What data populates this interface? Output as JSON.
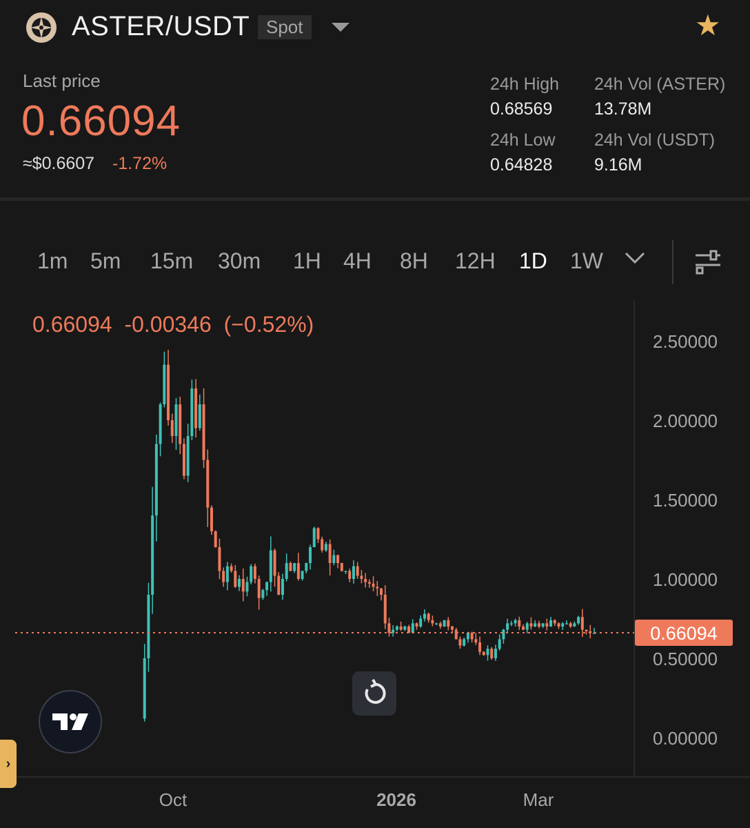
{
  "header": {
    "pair": "ASTER/USDT",
    "market_type": "Spot",
    "logo_icon": "aster-logo-icon",
    "favorite_icon": "star-icon",
    "favorite_color": "#e8b55e"
  },
  "ticker": {
    "last_price_label": "Last price",
    "last_price": "0.66094",
    "usd_price": "≈$0.6607",
    "change_pct": "-1.72%",
    "high_label": "24h High",
    "high_value": "0.68569",
    "low_label": "24h Low",
    "low_value": "0.64828",
    "vol_base_label": "24h Vol (ASTER)",
    "vol_base_value": "13.78M",
    "vol_quote_label": "24h Vol (USDT)",
    "vol_quote_value": "9.16M"
  },
  "timeframes": {
    "items": [
      "1m",
      "5m",
      "15m",
      "30m",
      "1H",
      "4H",
      "8H",
      "12H",
      "1D",
      "1W"
    ],
    "active": "1D",
    "more_icon": "chevron-down-icon",
    "settings_icon": "chart-settings-icon"
  },
  "chart_data": {
    "type": "candlestick",
    "title": "",
    "ohlc_readout": {
      "price": "0.66094",
      "change": "-0.00346",
      "change_pct": "(−0.52%)"
    },
    "y_ticks": [
      "2.50000",
      "2.00000",
      "1.50000",
      "1.00000",
      "0.50000",
      "0.00000"
    ],
    "x_ticks": [
      "Oct",
      "2026",
      "Mar"
    ],
    "ylim": [
      0,
      2.5
    ],
    "last_price_label": "0.66094",
    "last_price": 0.66094,
    "up_color": "#3fc1b6",
    "down_color": "#ee7a5b",
    "price_path": [
      0.12,
      0.5,
      0.9,
      1.4,
      1.85,
      2.1,
      2.35,
      2.0,
      1.9,
      2.1,
      1.85,
      1.65,
      1.9,
      2.2,
      1.95,
      2.1,
      1.75,
      1.45,
      1.3,
      1.2,
      1.05,
      0.98,
      1.08,
      1.05,
      0.95,
      1.0,
      0.92,
      0.98,
      1.08,
      1.0,
      0.88,
      0.93,
      0.98,
      1.18,
      1.02,
      0.9,
      1.0,
      1.1,
      1.05,
      1.1,
      1.0,
      1.05,
      1.1,
      1.2,
      1.32,
      1.25,
      1.18,
      1.22,
      1.1,
      1.15,
      1.1,
      1.05,
      1.05,
      1.0,
      1.08,
      1.02,
      1.0,
      0.98,
      0.97,
      0.95,
      0.94,
      0.9,
      0.72,
      0.66,
      0.68,
      0.7,
      0.68,
      0.7,
      0.66,
      0.72,
      0.7,
      0.75,
      0.78,
      0.74,
      0.72,
      0.72,
      0.7,
      0.74,
      0.7,
      0.68,
      0.62,
      0.58,
      0.62,
      0.66,
      0.62,
      0.6,
      0.54,
      0.52,
      0.56,
      0.5,
      0.56,
      0.62,
      0.68,
      0.72,
      0.72,
      0.74,
      0.7,
      0.68,
      0.72,
      0.7,
      0.72,
      0.7,
      0.72,
      0.7,
      0.74,
      0.72,
      0.7,
      0.72,
      0.72,
      0.7,
      0.72,
      0.76,
      0.68,
      0.67,
      0.66,
      0.66
    ]
  },
  "controls": {
    "reset_icon": "reset-chart-icon",
    "tradingview_icon": "tradingview-logo-icon",
    "side_tab_icon": "chevron-right-icon",
    "side_tab_label": "›"
  }
}
